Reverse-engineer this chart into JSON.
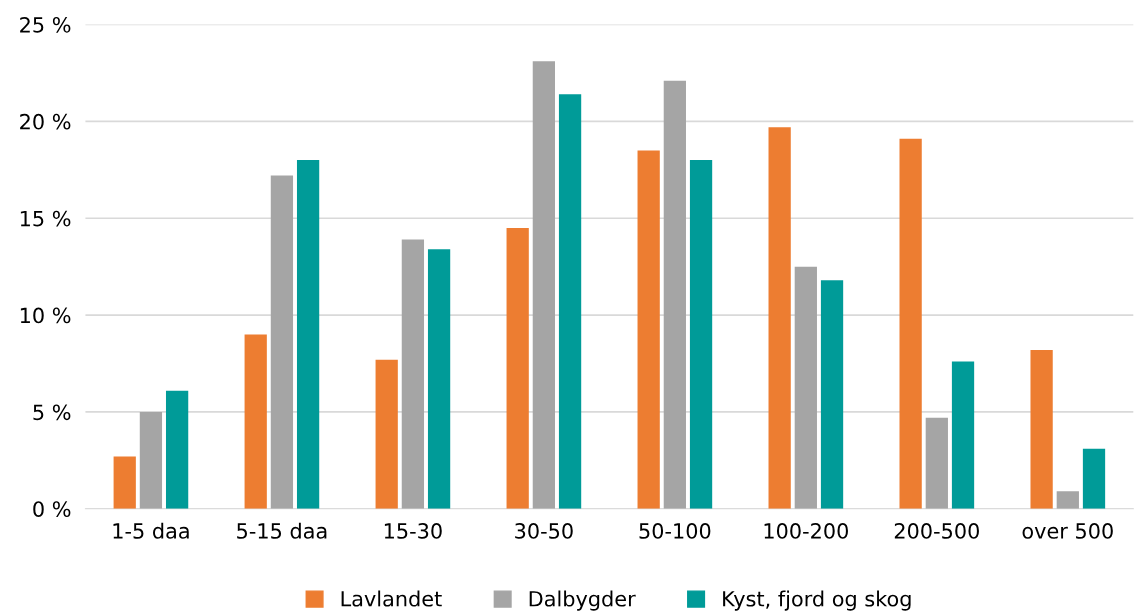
{
  "chart_data": {
    "type": "bar",
    "categories": [
      "1-5 daa",
      "5-15 daa",
      "15-30",
      "30-50",
      "50-100",
      "100-200",
      "200-500",
      "over 500"
    ],
    "series": [
      {
        "name": "Lavlandet",
        "color": "#ed7d31",
        "values": [
          2.7,
          9.0,
          7.7,
          14.5,
          18.5,
          19.7,
          19.1,
          8.2
        ]
      },
      {
        "name": "Dalbygder",
        "color": "#a5a5a5",
        "values": [
          5.0,
          17.2,
          13.9,
          23.1,
          22.1,
          12.5,
          4.7,
          0.9
        ]
      },
      {
        "name": "Kyst, fjord og skog",
        "color": "#009b98",
        "values": [
          6.1,
          18.0,
          13.4,
          21.4,
          18.0,
          11.8,
          7.6,
          3.1
        ]
      }
    ],
    "ylim": [
      0,
      25
    ],
    "yticks": [
      {
        "value": 0,
        "label": "0 %"
      },
      {
        "value": 5,
        "label": "5 %"
      },
      {
        "value": 10,
        "label": "10 %"
      },
      {
        "value": 15,
        "label": "15 %"
      },
      {
        "value": 20,
        "label": "20 %"
      },
      {
        "value": 25,
        "label": "25 %"
      }
    ],
    "grid": "y",
    "legend": "bottom"
  }
}
